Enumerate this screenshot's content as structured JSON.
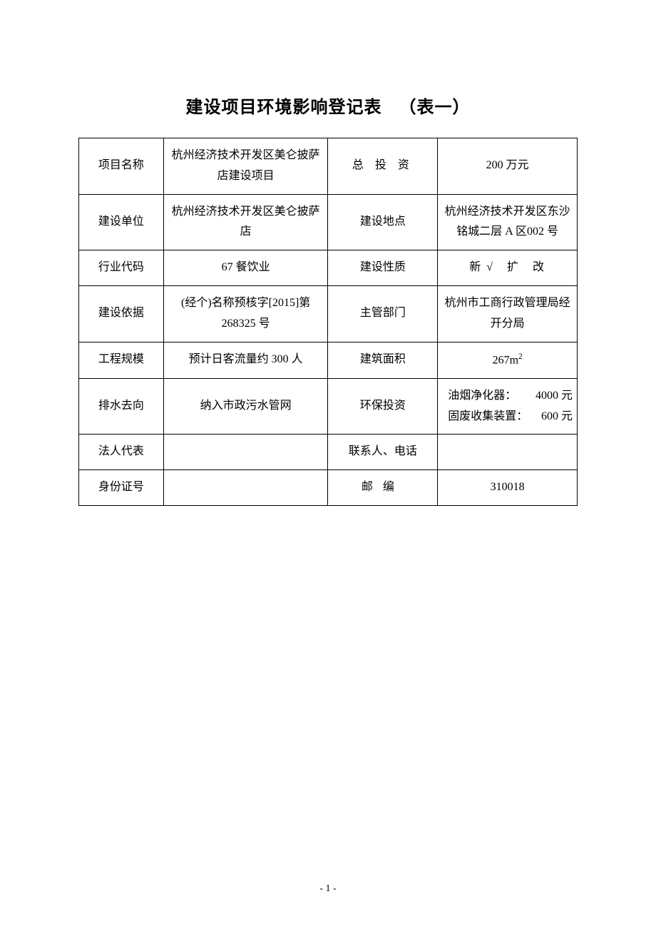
{
  "title_main": "建设项目环境影响登记表",
  "title_suffix": "（表一）",
  "page_number": "- 1 -",
  "table": {
    "columns": [
      "label_left",
      "value_left",
      "label_right",
      "value_right"
    ],
    "col_widths_pct": [
      17,
      33,
      22,
      28
    ],
    "border_color": "#000000",
    "background_color": "#ffffff",
    "text_color": "#000000",
    "fontsize_pt": 12,
    "rows": [
      {
        "label_left": "项目名称",
        "value_left": "杭州经济技术开发区美仑披萨店建设项目",
        "label_right": "总 投 资",
        "value_right": "200 万元"
      },
      {
        "label_left": "建设单位",
        "value_left": "杭州经济技术开发区美仑披萨店",
        "label_right": "建设地点",
        "value_right": "杭州经济技术开发区东沙铭城二层 A 区002 号"
      },
      {
        "label_left": "行业代码",
        "value_left": "67   餐饮业",
        "label_right": "建设性质",
        "value_right_options": {
          "new": "新",
          "check": "√",
          "expand": "扩",
          "modify": "改"
        }
      },
      {
        "label_left": "建设依据",
        "value_left": "(经个)名称预核字[2015]第 268325 号",
        "label_right": "主管部门",
        "value_right": "杭州市工商行政管理局经开分局"
      },
      {
        "label_left": "工程规模",
        "value_left": "预计日客流量约 300 人",
        "label_right": "建筑面积",
        "value_right_html": "267m²",
        "value_right_num": "267",
        "value_right_unit": "m",
        "value_right_sup": "2"
      },
      {
        "label_left": "排水去向",
        "value_left": "纳入市政污水管网",
        "label_right": "环保投资",
        "value_right_lines": [
          {
            "item": "油烟净化器：",
            "amount": "4000 元"
          },
          {
            "item": "固废收集装置：",
            "amount": "600 元"
          }
        ]
      },
      {
        "label_left": "法人代表",
        "value_left": "",
        "label_right": "联系人、电话",
        "value_right": ""
      },
      {
        "label_left": "身份证号",
        "value_left": "",
        "label_right": "邮编",
        "value_right": "310018"
      }
    ]
  }
}
